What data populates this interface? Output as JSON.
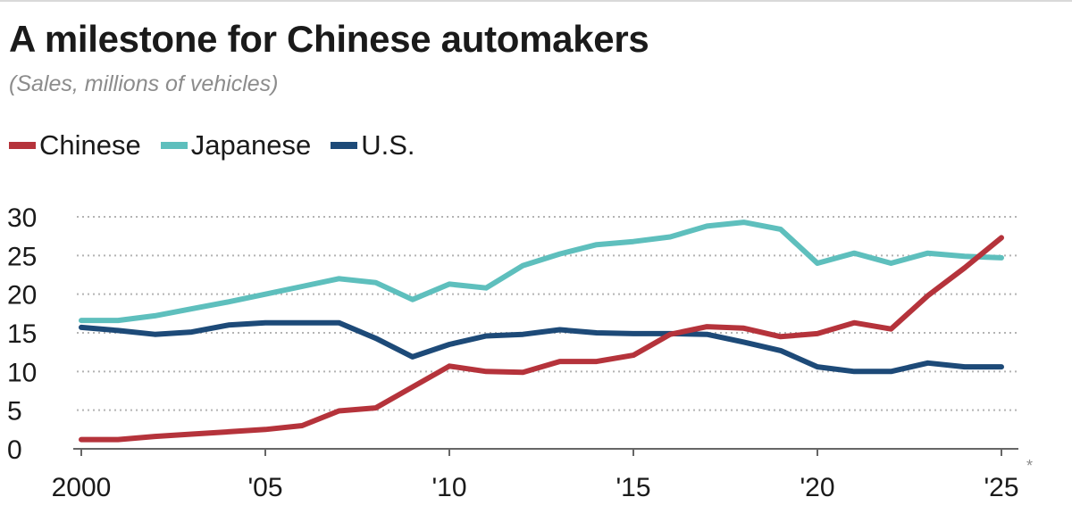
{
  "chart_data": {
    "type": "line",
    "title": "A milestone for Chinese automakers",
    "subtitle": "(Sales, millions of vehicles)",
    "xlabel": "",
    "ylabel": "",
    "x": [
      2000,
      2001,
      2002,
      2003,
      2004,
      2005,
      2006,
      2007,
      2008,
      2009,
      2010,
      2011,
      2012,
      2013,
      2014,
      2015,
      2016,
      2017,
      2018,
      2019,
      2020,
      2021,
      2022,
      2023,
      2024,
      2025
    ],
    "x_tick_values": [
      2000,
      2005,
      2010,
      2015,
      2020,
      2025
    ],
    "x_tick_labels": [
      "2000",
      "'05",
      "'10",
      "'15",
      "'20",
      "'25"
    ],
    "x_footnote_mark": "*",
    "y_ticks": [
      "0",
      "5",
      "10",
      "15",
      "20",
      "25",
      "30"
    ],
    "ylim": [
      0,
      30
    ],
    "grid": true,
    "legend_position": "top-left",
    "series": [
      {
        "name": "Chinese",
        "color": "#b5333b",
        "values": [
          1.2,
          1.2,
          1.6,
          1.9,
          2.2,
          2.5,
          3.0,
          4.9,
          5.3,
          8.0,
          10.7,
          10.0,
          9.9,
          11.3,
          11.3,
          12.1,
          14.8,
          15.8,
          15.6,
          14.5,
          14.9,
          16.3,
          15.5,
          19.8,
          23.4,
          27.3
        ]
      },
      {
        "name": "Japanese",
        "color": "#5ebfbd",
        "values": [
          16.6,
          16.6,
          17.2,
          18.1,
          19.0,
          20.0,
          21.0,
          22.0,
          21.5,
          19.3,
          21.3,
          20.8,
          23.7,
          25.2,
          26.4,
          26.8,
          27.4,
          28.8,
          29.3,
          28.4,
          24.0,
          25.3,
          24.0,
          25.3,
          24.9,
          24.7
        ]
      },
      {
        "name": "U.S.",
        "color": "#1d4a78",
        "values": [
          15.7,
          15.3,
          14.8,
          15.1,
          16.0,
          16.3,
          16.3,
          16.3,
          14.3,
          11.9,
          13.5,
          14.6,
          14.8,
          15.4,
          15.0,
          14.9,
          14.9,
          14.8,
          13.8,
          12.7,
          10.6,
          10.0,
          10.0,
          11.1,
          10.6,
          10.6
        ]
      }
    ]
  }
}
